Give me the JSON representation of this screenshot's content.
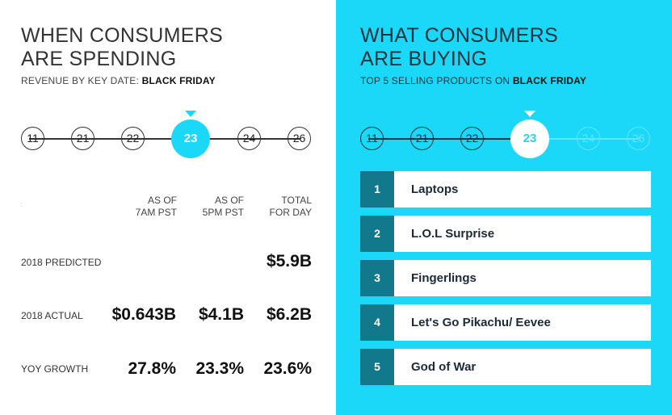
{
  "colors": {
    "accent": "#1bd8f8",
    "dark_teal": "#12798d",
    "text": "#111111"
  },
  "left": {
    "title_line1": "WHEN CONSUMERS",
    "title_line2": "ARE SPENDING",
    "subtitle_prefix": "REVENUE BY KEY DATE: ",
    "subtitle_bold": "BLACK FRIDAY",
    "dates": [
      "11",
      "21",
      "22",
      "23",
      "24",
      "26"
    ],
    "selected_date": "23",
    "tiny_mark": ":",
    "columns": [
      {
        "line1": "AS OF",
        "line2": "7AM PST"
      },
      {
        "line1": "AS OF",
        "line2": "5PM PST"
      },
      {
        "line1": "TOTAL",
        "line2": "FOR DAY"
      }
    ],
    "rows": [
      {
        "label": "2018 PREDICTED",
        "values": [
          "",
          "",
          "$5.9B"
        ]
      },
      {
        "label": "2018 ACTUAL",
        "values": [
          "$0.643B",
          "$4.1B",
          "$6.2B"
        ]
      },
      {
        "label": "YOY GROWTH",
        "values": [
          "27.8%",
          "23.3%",
          "23.6%"
        ]
      }
    ]
  },
  "right": {
    "title_line1": "WHAT CONSUMERS",
    "title_line2": "ARE BUYING",
    "subtitle_prefix": "TOP 5 SELLING PRODUCTS ON ",
    "subtitle_bold": "BLACK FRIDAY",
    "dates": [
      "11",
      "21",
      "22",
      "23",
      "24",
      "26"
    ],
    "selected_date": "23",
    "products": [
      {
        "rank": "1",
        "name": "Laptops"
      },
      {
        "rank": "2",
        "name": "L.O.L Surprise"
      },
      {
        "rank": "3",
        "name": "Fingerlings"
      },
      {
        "rank": "4",
        "name": "Let's Go Pikachu/ Eevee"
      },
      {
        "rank": "5",
        "name": "God of War"
      }
    ]
  }
}
